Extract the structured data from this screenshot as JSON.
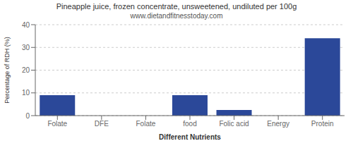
{
  "chart_data": {
    "type": "bar",
    "title": "Pineapple juice, frozen concentrate, unsweetened, undiluted per 100g",
    "subtitle": "www.dietandfitnesstoday.com",
    "categories": [
      "Folate",
      "DFE",
      "Folate",
      "food",
      "Folic acid",
      "Energy",
      "Protein"
    ],
    "values": [
      9,
      0,
      0,
      9,
      2.5,
      0,
      34
    ],
    "color": "#2b4899",
    "xlabel": "Different Nutrients",
    "ylabel": "Percentage of RDH (%)",
    "ylim": [
      0,
      40
    ],
    "yticks": [
      0,
      10,
      20,
      30,
      40
    ],
    "grid": true
  }
}
